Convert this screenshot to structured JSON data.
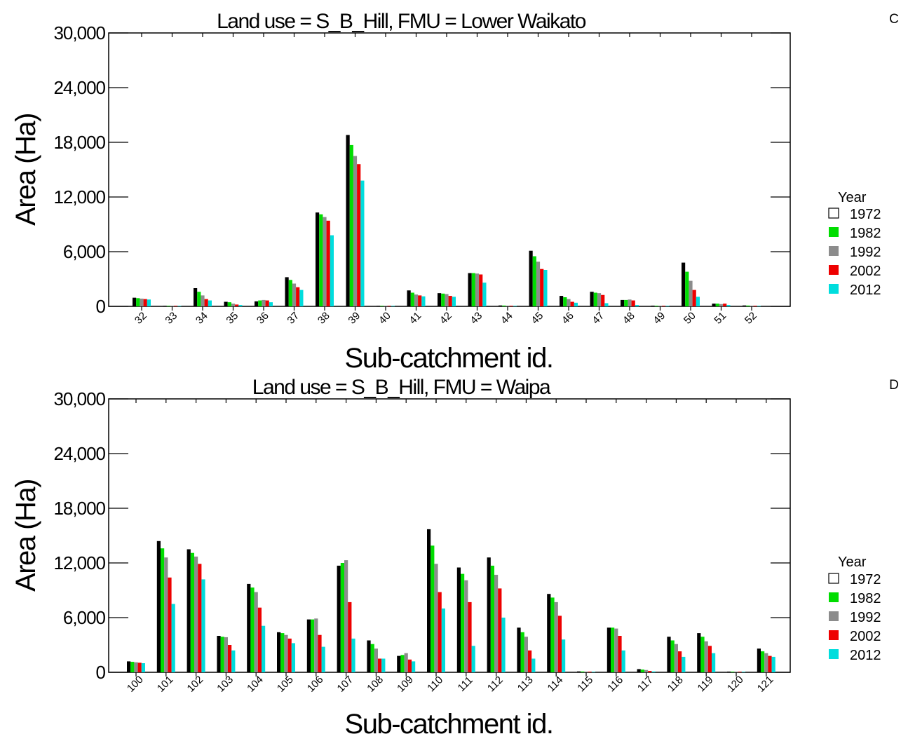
{
  "colors": {
    "1972": "#000000",
    "1982": "#00dd00",
    "1992": "#8c8c8c",
    "2002": "#ee0000",
    "2012": "#00dddd"
  },
  "chart_data": [
    {
      "type": "bar",
      "panel_letter": "C",
      "title": "Land use = S_B_Hill, FMU = Lower Waikato",
      "xlabel": "Sub-catchment id.",
      "ylabel": "Area (Ha)",
      "ylim": [
        0,
        30000
      ],
      "yticks": [
        0,
        6000,
        12000,
        18000,
        24000,
        30000
      ],
      "ytick_labels": [
        "0",
        "6,000",
        "12,000",
        "18,000",
        "24,000",
        "30,000"
      ],
      "grid": false,
      "legend_position": "right",
      "legend_title": "Year",
      "categories": [
        "32",
        "33",
        "34",
        "35",
        "36",
        "37",
        "38",
        "39",
        "40",
        "41",
        "42",
        "43",
        "44",
        "45",
        "46",
        "47",
        "48",
        "49",
        "50",
        "51",
        "52"
      ],
      "series": [
        {
          "name": "1972",
          "values": [
            950,
            50,
            2000,
            500,
            550,
            3200,
            10300,
            18800,
            50,
            1750,
            1450,
            3650,
            100,
            6100,
            1150,
            1600,
            700,
            80,
            4800,
            300,
            100
          ]
        },
        {
          "name": "1982",
          "values": [
            900,
            40,
            1600,
            450,
            650,
            2900,
            10100,
            17700,
            40,
            1500,
            1400,
            3650,
            90,
            5500,
            1000,
            1500,
            700,
            70,
            3800,
            300,
            90
          ]
        },
        {
          "name": "1992",
          "values": [
            850,
            40,
            1200,
            300,
            700,
            2500,
            9800,
            16500,
            30,
            1300,
            1350,
            3600,
            80,
            4900,
            800,
            1450,
            750,
            60,
            2800,
            250,
            80
          ]
        },
        {
          "name": "2002",
          "values": [
            800,
            30,
            800,
            200,
            650,
            2100,
            9400,
            15600,
            30,
            1200,
            1150,
            3500,
            70,
            4100,
            500,
            1250,
            650,
            50,
            1800,
            300,
            70
          ]
        },
        {
          "name": "2012",
          "values": [
            750,
            30,
            650,
            150,
            450,
            1800,
            7800,
            13800,
            20,
            1100,
            1050,
            2600,
            60,
            4000,
            400,
            350,
            150,
            40,
            1050,
            150,
            60
          ]
        }
      ]
    },
    {
      "type": "bar",
      "panel_letter": "D",
      "title": "Land use = S_B_Hill, FMU = Waipa",
      "xlabel": "Sub-catchment id.",
      "ylabel": "Area (Ha)",
      "ylim": [
        0,
        30000
      ],
      "yticks": [
        0,
        6000,
        12000,
        18000,
        24000,
        30000
      ],
      "ytick_labels": [
        "0",
        "6,000",
        "12,000",
        "18,000",
        "24,000",
        "30,000"
      ],
      "grid": false,
      "legend_position": "right",
      "legend_title": "Year",
      "categories": [
        "100",
        "101",
        "102",
        "103",
        "104",
        "105",
        "106",
        "107",
        "108",
        "109",
        "110",
        "111",
        "112",
        "113",
        "114",
        "115",
        "116",
        "117",
        "118",
        "119",
        "120",
        "121"
      ],
      "series": [
        {
          "name": "1972",
          "values": [
            1200,
            14400,
            13500,
            4000,
            9700,
            4400,
            5800,
            11700,
            3500,
            1800,
            15700,
            11500,
            12600,
            4900,
            8600,
            100,
            4900,
            350,
            3900,
            4300,
            80,
            2600
          ]
        },
        {
          "name": "1982",
          "values": [
            1150,
            13600,
            13100,
            3900,
            9300,
            4300,
            5800,
            12000,
            3100,
            1900,
            13900,
            10800,
            11700,
            4400,
            8200,
            90,
            4900,
            300,
            3500,
            3900,
            70,
            2300
          ]
        },
        {
          "name": "1992",
          "values": [
            1100,
            12600,
            12700,
            3850,
            8800,
            4100,
            5900,
            12300,
            2600,
            2100,
            11900,
            10100,
            10700,
            3900,
            7700,
            80,
            4800,
            250,
            3100,
            3400,
            60,
            2100
          ]
        },
        {
          "name": "2002",
          "values": [
            1050,
            10400,
            11900,
            3000,
            7100,
            3700,
            4100,
            7700,
            1500,
            1400,
            8800,
            7700,
            9200,
            2400,
            6200,
            70,
            4000,
            150,
            2300,
            2900,
            50,
            1800
          ]
        },
        {
          "name": "2012",
          "values": [
            1000,
            7500,
            10200,
            2400,
            5100,
            3200,
            2800,
            3700,
            1500,
            1200,
            7000,
            2900,
            6000,
            1500,
            3600,
            60,
            2400,
            100,
            1700,
            2100,
            40,
            1700
          ]
        }
      ]
    }
  ]
}
